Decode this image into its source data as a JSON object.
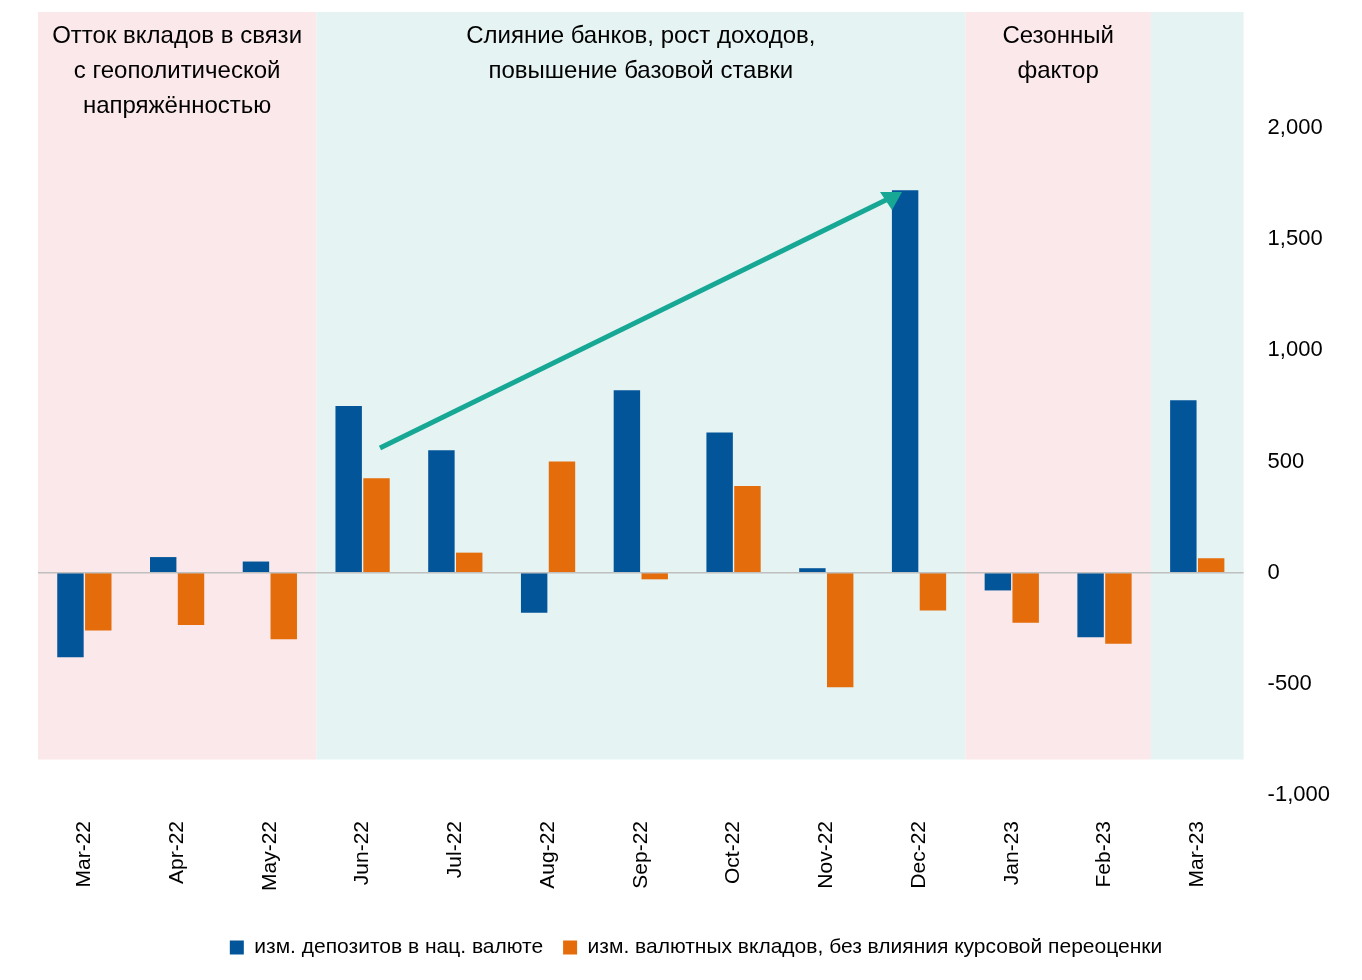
{
  "chart_data": {
    "type": "bar",
    "categories": [
      "Mar-22",
      "Apr-22",
      "May-22",
      "Jun-22",
      "Jul-22",
      "Aug-22",
      "Sep-22",
      "Oct-22",
      "Nov-22",
      "Dec-22",
      "Jan-23",
      "Feb-23",
      "Mar-23"
    ],
    "series": [
      {
        "name": "изм. депозитов в нац. валюте",
        "color": "#03559a",
        "values": [
          -380,
          70,
          50,
          750,
          550,
          -180,
          820,
          630,
          20,
          1720,
          -80,
          -290,
          775
        ]
      },
      {
        "name": "изм. валютных вкладов, без влияния курсовой переоценки",
        "color": "#e46c0a",
        "values": [
          -260,
          -235,
          -300,
          425,
          90,
          500,
          -30,
          390,
          -515,
          -170,
          -225,
          -320,
          65
        ]
      }
    ],
    "ylim": [
      -1000,
      2000
    ],
    "yticks": [
      {
        "value": -1000,
        "label": "-1,000"
      },
      -500,
      0,
      500,
      {
        "value": 1000,
        "label": "1,000"
      },
      {
        "value": 1500,
        "label": "1,500"
      },
      {
        "value": 2000,
        "label": "2,000"
      }
    ],
    "ref_lines": [
      {
        "axis": "y",
        "value": 0,
        "color": "#bfbfbf"
      }
    ],
    "bands": [
      {
        "axis": "x",
        "from": "Mar-22",
        "to": "May-22",
        "label": "Отток вкладов в связи с геополитической напряжённостью",
        "color": "#fbe8ea"
      },
      {
        "axis": "x",
        "from": "Jun-22",
        "to": "Dec-22",
        "label": "Слияние банков, рост доходов, повышение базовой ставки",
        "color": "#e5f4f3"
      },
      {
        "axis": "x",
        "from": "Jan-23",
        "to": "Feb-23",
        "label": "Сезонный фактор",
        "color": "#fbe8ea"
      },
      {
        "axis": "x",
        "from": "Mar-23",
        "to": "Mar-23",
        "label": null,
        "color": "#e5f4f3"
      }
    ],
    "grid": false,
    "legend": "bottom"
  }
}
